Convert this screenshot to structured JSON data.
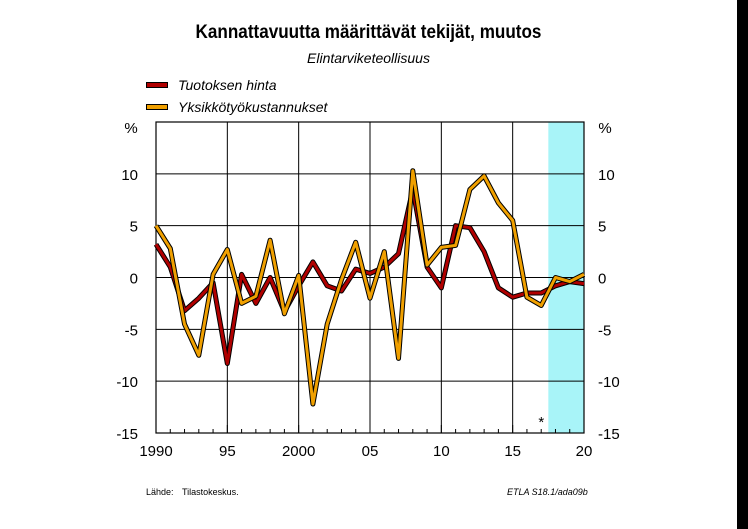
{
  "title": "Kannattavuutta määrittävät tekijät, muutos",
  "subtitle": "Elintarviketeollisuus",
  "footer": {
    "source_label": "Lähde:",
    "source_value": "Tilastokeskus.",
    "code": "ETLA S18.1/ada09b"
  },
  "forecast_marker": "*",
  "chart_data": {
    "type": "line",
    "title": "Kannattavuutta määrittävät tekijät, muutos",
    "subtitle": "Elintarviketeollisuus",
    "yunit_left": "%",
    "yunit_right": "%",
    "xlim": [
      1990,
      2020
    ],
    "ylim": [
      -15,
      15
    ],
    "xticks": [
      1990,
      1995,
      2000,
      2005,
      2010,
      2015,
      2020
    ],
    "xtick_labels": [
      "1990",
      "95",
      "2000",
      "05",
      "10",
      "15",
      "20"
    ],
    "yticks": [
      -15,
      -10,
      -5,
      0,
      5,
      10
    ],
    "ytick_labels": [
      "-15",
      "-10",
      "-5",
      "0",
      "5",
      "10"
    ],
    "grid": true,
    "forecast_shading": [
      2017.5,
      2020.2
    ],
    "legend_position": "top-left, above plot",
    "series": [
      {
        "name": "Tuotoksen hinta",
        "color": "#b00000",
        "x": [
          1990,
          1991,
          1992,
          1993,
          1994,
          1995,
          1996,
          1997,
          1998,
          1999,
          2000,
          2001,
          2002,
          2003,
          2004,
          2005,
          2006,
          2007,
          2008,
          2009,
          2010,
          2011,
          2012,
          2013,
          2014,
          2015,
          2016,
          2017,
          2018,
          2019,
          2020
        ],
        "values": [
          3.2,
          1.0,
          -3.2,
          -2.0,
          -0.5,
          -8.3,
          0.3,
          -2.5,
          0.0,
          -3.3,
          -0.8,
          1.5,
          -0.8,
          -1.3,
          0.8,
          0.4,
          1.0,
          2.3,
          8.5,
          1.0,
          -1.0,
          5.0,
          4.8,
          2.5,
          -1.0,
          -1.9,
          -1.5,
          -1.5,
          -0.8,
          -0.4,
          -0.6
        ]
      },
      {
        "name": "Yksikkötyökustannukset",
        "color": "#f0a000",
        "x": [
          1990,
          1991,
          1992,
          1993,
          1994,
          1995,
          1996,
          1997,
          1998,
          1999,
          2000,
          2001,
          2002,
          2003,
          2004,
          2005,
          2006,
          2007,
          2008,
          2009,
          2010,
          2011,
          2012,
          2013,
          2014,
          2015,
          2016,
          2017,
          2018,
          2019,
          2020
        ],
        "values": [
          5.0,
          2.8,
          -4.5,
          -7.5,
          0.3,
          2.7,
          -2.5,
          -1.8,
          3.6,
          -3.5,
          0.2,
          -12.2,
          -4.5,
          -0.2,
          3.4,
          -2.0,
          2.5,
          -7.8,
          10.3,
          1.2,
          2.9,
          3.1,
          8.5,
          9.8,
          7.2,
          5.5,
          -1.9,
          -2.7,
          0.0,
          -0.4,
          0.3
        ]
      }
    ]
  }
}
